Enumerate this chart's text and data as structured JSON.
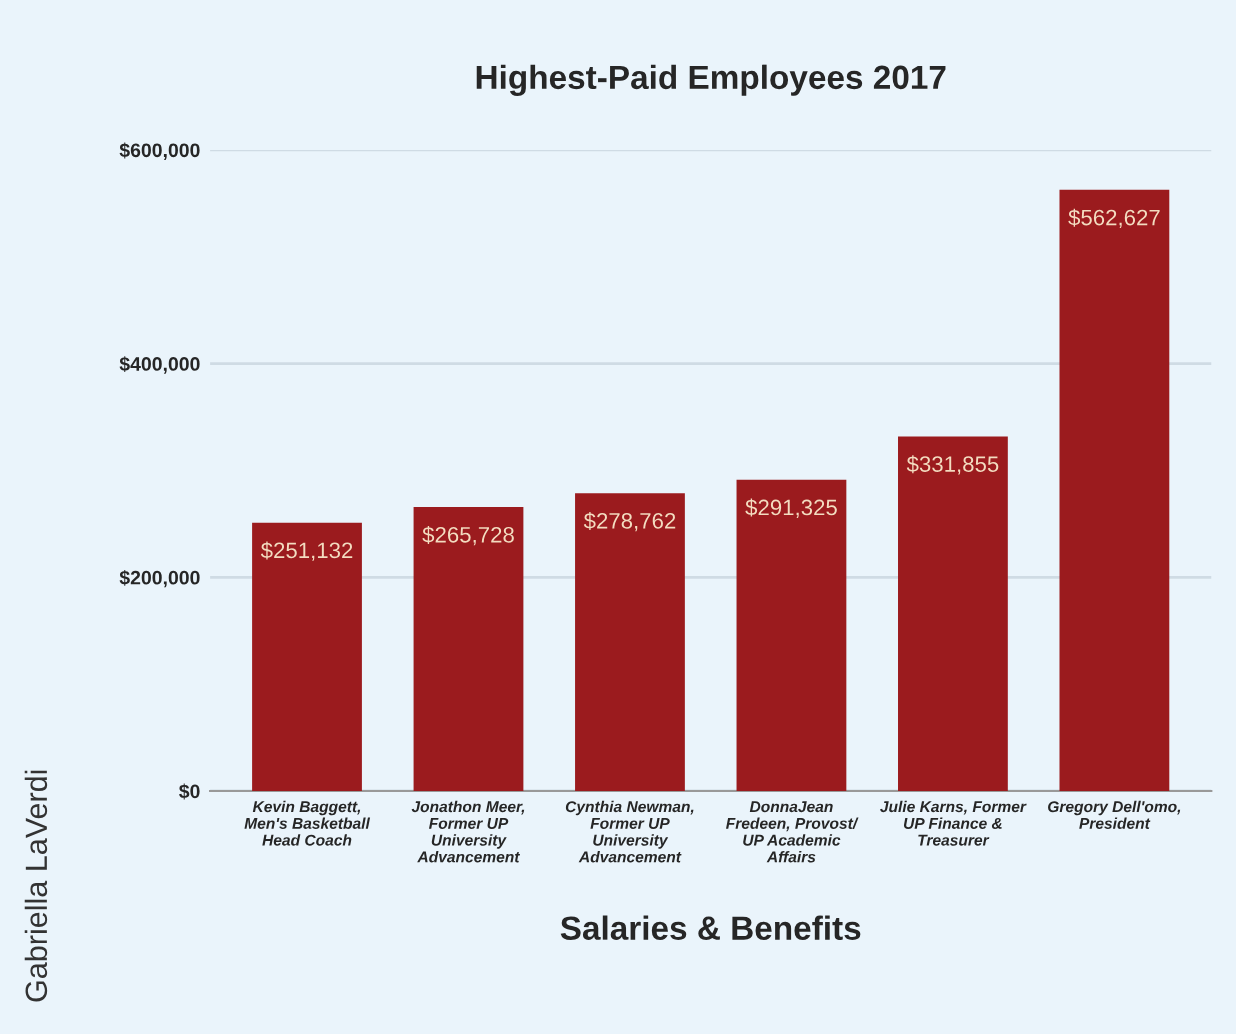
{
  "chart_data": {
    "type": "bar",
    "title": "Highest-Paid Employees 2017",
    "xlabel": "Salaries & Benefits",
    "categories": [
      "Kevin Baggett,\nMen's Basketball\nHead Coach",
      "Jonathon Meer,\nFormer UP\nUniversity\nAdvancement",
      "Cynthia Newman,\nFormer UP\nUniversity\nAdvancement",
      "DonnaJean\nFredeen, Provost/\nUP Academic\nAffairs",
      "Julie Karns, Former\nUP Finance &\nTreasurer",
      "Gregory Dell'omo,\nPresident"
    ],
    "values": [
      251132,
      265728,
      278762,
      291325,
      331855,
      562627
    ],
    "value_labels": [
      "$251,132",
      "$265,728",
      "$278,762",
      "$291,325",
      "$331,855",
      "$562,627"
    ],
    "color": "#9b1b1e",
    "ylim": [
      0,
      600000
    ],
    "yticks": [
      {
        "value": 0,
        "label": "$0"
      },
      {
        "value": 200000,
        "label": "$200,000"
      },
      {
        "value": 400000,
        "label": "$400,000"
      },
      {
        "value": 600000,
        "label": "$600,000"
      }
    ],
    "grid": "y",
    "legend": false,
    "annotations": [
      "Gabriella LaVerdi"
    ]
  }
}
